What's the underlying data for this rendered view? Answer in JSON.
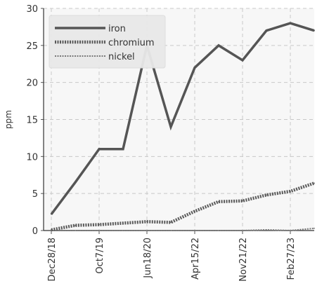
{
  "chart_data": {
    "type": "line",
    "title": "",
    "xlabel": "",
    "ylabel": "ppm",
    "ylim": [
      0,
      30
    ],
    "yticks": [
      0,
      5,
      10,
      15,
      20,
      25,
      30
    ],
    "xticks": [
      "Dec28/18",
      "Oct7/19",
      "Jun18/20",
      "Apr15/22",
      "Nov21/22",
      "Feb27/23"
    ],
    "x": [
      "Dec28/18",
      "",
      "Oct7/19",
      "",
      "Jun18/20",
      "",
      "Apr15/22",
      "",
      "Nov21/22",
      "",
      "Feb27/23",
      ""
    ],
    "grid": true,
    "legend_position": "top-left",
    "series": [
      {
        "name": "iron",
        "style": "solid",
        "color": "#555555",
        "values": [
          2.2,
          6.5,
          11,
          11,
          25,
          14,
          22,
          25,
          23,
          27,
          28,
          27
        ]
      },
      {
        "name": "chromium",
        "style": "dense-dash",
        "color": "#555555",
        "values": [
          0.1,
          0.7,
          0.8,
          1.0,
          1.2,
          1.1,
          2.6,
          3.9,
          4.0,
          4.8,
          5.3,
          6.4
        ]
      },
      {
        "name": "nickel",
        "style": "light-dash",
        "color": "#666666",
        "values": [
          0,
          0,
          0,
          0,
          0,
          0,
          0,
          0,
          0,
          0.1,
          0,
          0.3
        ]
      }
    ]
  }
}
